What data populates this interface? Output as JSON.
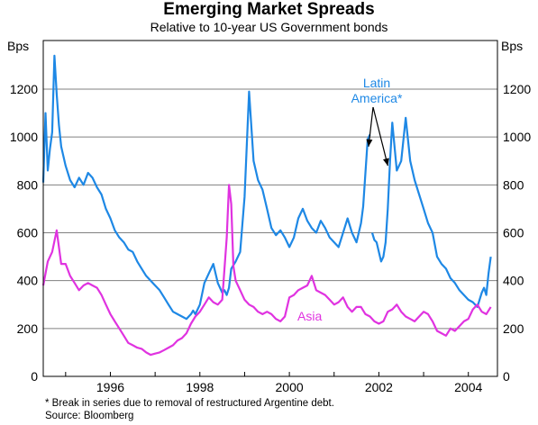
{
  "title": "Emerging Market Spreads",
  "subtitle": "Relative to 10-year US Government bonds",
  "y_unit_left": "Bps",
  "y_unit_right": "Bps",
  "footnote": "* Break in series due to removal of restructured Argentine debt.",
  "source": "Source: Bloomberg",
  "annotations": {
    "latam_line1": "Latin",
    "latam_line2": "America*",
    "asia": "Asia"
  },
  "colors": {
    "latin_america": "#1E88E5",
    "asia": "#E033E0",
    "grid": "#808080",
    "annotation_arrow": "#000000"
  },
  "chart_data": {
    "type": "line",
    "title": "Emerging Market Spreads",
    "subtitle": "Relative to 10-year US Government bonds",
    "ylabel": "Bps",
    "ylim": [
      0,
      1200
    ],
    "yticks": [
      0,
      200,
      400,
      600,
      800,
      1000,
      1200
    ],
    "xlim": [
      1994.5,
      2004.65
    ],
    "xticks": [
      1996,
      1998,
      2000,
      2002,
      2004
    ],
    "grid": true,
    "legend": "inline labels",
    "series": [
      {
        "name": "Latin America*",
        "segments": [
          {
            "x": [
              1994.5,
              1994.55,
              1994.6,
              1994.65,
              1994.7,
              1994.75,
              1994.8,
              1994.85,
              1994.9,
              1995.0,
              1995.1,
              1995.2,
              1995.3,
              1995.4,
              1995.5,
              1995.6,
              1995.7,
              1995.8,
              1995.9,
              1996.0,
              1996.1,
              1996.2,
              1996.3,
              1996.4,
              1996.5,
              1996.6,
              1996.7,
              1996.8,
              1996.9,
              1997.0,
              1997.1,
              1997.2,
              1997.3,
              1997.4,
              1997.5,
              1997.6,
              1997.7,
              1997.8,
              1997.85,
              1997.9,
              1998.0,
              1998.1,
              1998.2,
              1998.3,
              1998.4,
              1998.5,
              1998.55,
              1998.6,
              1998.65,
              1998.7,
              1998.8,
              1998.9,
              1999.0,
              1999.1,
              1999.2,
              1999.3,
              1999.4,
              1999.5,
              1999.6,
              1999.7,
              1999.8,
              1999.9,
              2000.0,
              2000.1,
              2000.2,
              2000.3,
              2000.4,
              2000.5,
              2000.6,
              2000.7,
              2000.8,
              2000.9,
              2001.0,
              2001.1,
              2001.2,
              2001.3,
              2001.4,
              2001.5,
              2001.6,
              2001.65,
              2001.7,
              2001.75,
              2001.8
            ],
            "values": [
              810,
              1100,
              860,
              950,
              1020,
              1340,
              1180,
              1050,
              960,
              880,
              820,
              790,
              830,
              800,
              850,
              830,
              790,
              760,
              700,
              660,
              610,
              580,
              560,
              530,
              520,
              480,
              450,
              420,
              400,
              380,
              360,
              330,
              300,
              270,
              260,
              250,
              240,
              260,
              275,
              260,
              300,
              390,
              430,
              470,
              390,
              350,
              360,
              340,
              370,
              450,
              480,
              520,
              750,
              1190,
              900,
              820,
              780,
              700,
              620,
              590,
              610,
              580,
              540,
              580,
              660,
              700,
              650,
              620,
              600,
              650,
              620,
              580,
              560,
              540,
              600,
              660,
              600,
              560,
              640,
              710,
              850,
              990,
              1010
            ]
          },
          {
            "x": [
              2001.85,
              2001.9,
              2001.95,
              2002.0,
              2002.05,
              2002.1,
              2002.15,
              2002.2,
              2002.25,
              2002.3,
              2002.35,
              2002.4,
              2002.5,
              2002.6,
              2002.7,
              2002.8,
              2002.9,
              2003.0,
              2003.1,
              2003.2,
              2003.3,
              2003.4,
              2003.5,
              2003.6,
              2003.7,
              2003.8,
              2003.9,
              2004.0,
              2004.1,
              2004.2,
              2004.3,
              2004.35,
              2004.4,
              2004.45,
              2004.5
            ],
            "values": [
              600,
              570,
              560,
              520,
              480,
              500,
              560,
              700,
              900,
              1060,
              960,
              860,
              900,
              1080,
              900,
              820,
              760,
              700,
              640,
              600,
              500,
              470,
              450,
              410,
              390,
              360,
              340,
              320,
              310,
              290,
              350,
              370,
              340,
              430,
              500
            ]
          }
        ]
      },
      {
        "name": "Asia",
        "segments": [
          {
            "x": [
              1994.5,
              1994.6,
              1994.7,
              1994.8,
              1994.9,
              1995.0,
              1995.1,
              1995.2,
              1995.3,
              1995.4,
              1995.5,
              1995.6,
              1995.7,
              1995.8,
              1995.9,
              1996.0,
              1996.1,
              1996.2,
              1996.3,
              1996.4,
              1996.5,
              1996.6,
              1996.7,
              1996.8,
              1996.9,
              1997.0,
              1997.1,
              1997.2,
              1997.3,
              1997.4,
              1997.5,
              1997.6,
              1997.7,
              1997.8,
              1997.9,
              1998.0,
              1998.1,
              1998.2,
              1998.3,
              1998.4,
              1998.5,
              1998.6,
              1998.65,
              1998.7,
              1998.75,
              1998.8,
              1998.9,
              1999.0,
              1999.1,
              1999.2,
              1999.3,
              1999.4,
              1999.5,
              1999.6,
              1999.7,
              1999.8,
              1999.9,
              2000.0,
              2000.1,
              2000.2,
              2000.3,
              2000.4,
              2000.5,
              2000.6,
              2000.7,
              2000.8,
              2000.9,
              2001.0,
              2001.1,
              2001.2,
              2001.3,
              2001.4,
              2001.5,
              2001.6,
              2001.7,
              2001.8,
              2001.9,
              2002.0,
              2002.1,
              2002.2,
              2002.3,
              2002.4,
              2002.5,
              2002.6,
              2002.7,
              2002.8,
              2002.9,
              2003.0,
              2003.1,
              2003.2,
              2003.3,
              2003.4,
              2003.5,
              2003.6,
              2003.7,
              2003.8,
              2003.9,
              2004.0,
              2004.1,
              2004.2,
              2004.3,
              2004.4,
              2004.5
            ],
            "values": [
              380,
              480,
              520,
              610,
              470,
              470,
              420,
              390,
              360,
              380,
              390,
              380,
              370,
              340,
              300,
              260,
              230,
              200,
              170,
              140,
              130,
              120,
              115,
              100,
              90,
              95,
              100,
              110,
              120,
              130,
              150,
              160,
              180,
              220,
              250,
              270,
              300,
              330,
              310,
              300,
              320,
              580,
              800,
              720,
              460,
              400,
              360,
              320,
              300,
              290,
              270,
              260,
              270,
              260,
              240,
              230,
              250,
              330,
              340,
              360,
              370,
              380,
              420,
              360,
              350,
              340,
              320,
              300,
              310,
              330,
              290,
              270,
              290,
              290,
              260,
              250,
              230,
              220,
              230,
              270,
              280,
              300,
              270,
              250,
              240,
              230,
              250,
              270,
              260,
              230,
              190,
              180,
              170,
              200,
              190,
              210,
              230,
              240,
              280,
              300,
              270,
              260,
              290
            ]
          }
        ]
      }
    ],
    "footnote": "* Break in series due to removal of restructured Argentine debt.",
    "source": "Source: Bloomberg"
  }
}
